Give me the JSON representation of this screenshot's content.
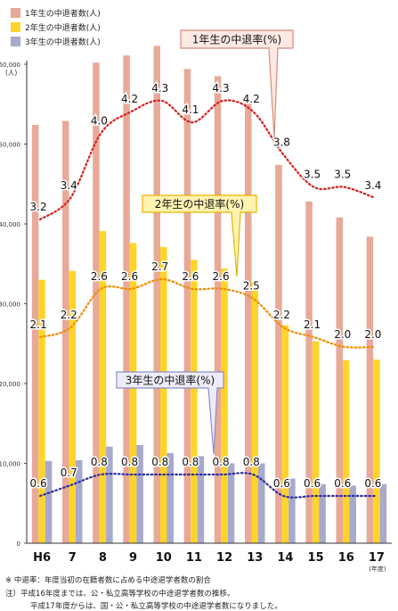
{
  "chart_data": {
    "type": "bar",
    "ylabel": "(人)",
    "xunit": "(年度)",
    "categories": [
      "H6",
      "7",
      "8",
      "9",
      "10",
      "11",
      "12",
      "13",
      "14",
      "15",
      "16",
      "17"
    ],
    "ylim": [
      0,
      60000
    ],
    "yticks": [
      "0",
      "10,000",
      "20,000",
      "30,000",
      "40,000",
      "50,000",
      "60,000"
    ],
    "series": [
      {
        "name": "1年生の中退者数(人)",
        "color": "#e8a998",
        "values": [
          52400,
          52900,
          60200,
          61100,
          62300,
          59400,
          58500,
          55400,
          47400,
          42800,
          40800,
          38400
        ]
      },
      {
        "name": "2年生の中退者数(人)",
        "color": "#ffd42a",
        "values": [
          33000,
          34100,
          39100,
          37600,
          37100,
          35500,
          34400,
          32700,
          27300,
          25300,
          22900,
          23000
        ]
      },
      {
        "name": "3年生の中退者数(人)",
        "color": "#a7a9cd",
        "values": [
          10300,
          10400,
          12100,
          12300,
          11300,
          10900,
          10000,
          10000,
          8100,
          7400,
          7200,
          7400
        ]
      }
    ],
    "rates": [
      {
        "name": "1年生の中退率(%)",
        "color": "#d42020",
        "values": [
          3.2,
          3.4,
          4.0,
          4.2,
          4.3,
          4.1,
          4.3,
          4.2,
          3.8,
          3.5,
          3.5,
          3.4
        ],
        "labels": [
          "3.2",
          "3.4",
          "4.0",
          "4.2",
          "4.3",
          "4.1",
          "4.3",
          "4.2",
          "3.8",
          "3.5",
          "3.5",
          "3.4"
        ]
      },
      {
        "name": "2年生の中退率(%)",
        "color": "#f08c00",
        "values": [
          2.1,
          2.2,
          2.6,
          2.6,
          2.7,
          2.6,
          2.6,
          2.5,
          2.2,
          2.1,
          2.0,
          2.0
        ],
        "labels": [
          "2.1",
          "2.2",
          "2.6",
          "2.6",
          "2.7",
          "2.6",
          "2.6",
          "2.5",
          "2.2",
          "2.1",
          "2.0",
          "2.0"
        ]
      },
      {
        "name": "3年生の中退率(%)",
        "color": "#2e2ea0",
        "values": [
          0.6,
          0.7,
          0.8,
          0.8,
          0.8,
          0.8,
          0.8,
          0.8,
          0.6,
          0.6,
          0.6,
          0.6
        ],
        "labels": [
          "0.6",
          "0.7",
          "0.8",
          "0.8",
          "0.8",
          "0.8",
          "0.8",
          "0.8",
          "0.6",
          "0.6",
          "0.6",
          "0.6"
        ]
      }
    ],
    "legend_position": "top-left"
  },
  "notes": [
    "※ 中退率：年度当初の在籍者数に占める中途退学者数の割合",
    "注）平成16年度までは、公・私立高等学校の中途退学者数の推移。",
    "平成17年度からは、国・公・私立高等学校の中途退学者数になりました。"
  ]
}
